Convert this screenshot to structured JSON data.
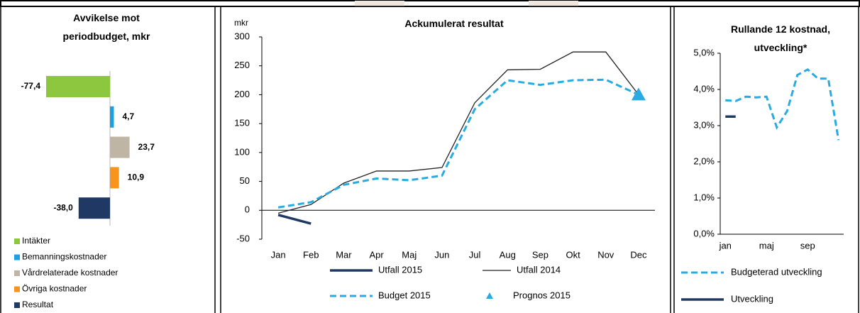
{
  "chart_data": [
    {
      "type": "hbar",
      "title": "Avvikelse mot periodbudget, mkr",
      "categories": [
        "Intäkter",
        "Bemanningskostnader",
        "Vårdrelaterade kostnader",
        "Övriga kostnader",
        "Resultat"
      ],
      "values": [
        -77.4,
        4.7,
        23.7,
        10.9,
        -38.0
      ],
      "value_labels": [
        "-77,4",
        "4,7",
        "23,7",
        "10,9",
        "-38,0"
      ],
      "colors": [
        "#8dc63f",
        "#1ba1e2",
        "#bfb5a5",
        "#f7941d",
        "#1f3864"
      ]
    },
    {
      "type": "line",
      "title": "Ackumulerat resultat",
      "y_label": "mkr",
      "categories": [
        "Jan",
        "Feb",
        "Mar",
        "Apr",
        "Maj",
        "Jun",
        "Jul",
        "Aug",
        "Sep",
        "Okt",
        "Nov",
        "Dec"
      ],
      "ylim": [
        -50,
        300
      ],
      "yticks": [
        -50,
        0,
        50,
        100,
        150,
        200,
        250,
        300
      ],
      "series": [
        {
          "name": "Utfall 2015",
          "color": "#1f3864",
          "style": "thick",
          "values": [
            -8,
            -23,
            null,
            null,
            null,
            null,
            null,
            null,
            null,
            null,
            null,
            null
          ]
        },
        {
          "name": "Utfall 2014",
          "color": "#222222",
          "style": "thin",
          "values": [
            -5,
            10,
            47,
            68,
            68,
            74,
            186,
            243,
            244,
            274,
            274,
            200
          ]
        },
        {
          "name": "Budget 2015",
          "color": "#29abe2",
          "style": "dashed",
          "values": [
            5,
            14,
            44,
            55,
            52,
            60,
            175,
            225,
            217,
            225,
            226,
            200
          ]
        },
        {
          "name": "Prognos 2015",
          "color": "#29abe2",
          "style": "triangle",
          "values": [
            null,
            null,
            null,
            null,
            null,
            null,
            null,
            null,
            null,
            null,
            null,
            200
          ]
        }
      ]
    },
    {
      "type": "line",
      "title": "Rullande 12 kostnad, utveckling*",
      "categories": [
        "jan",
        null,
        null,
        null,
        "maj",
        null,
        null,
        null,
        "sep",
        null,
        null,
        null
      ],
      "ylim": [
        0,
        5
      ],
      "yticks": [
        {
          "value": 0,
          "label": "0,0%"
        },
        {
          "value": 1,
          "label": "1,0%"
        },
        {
          "value": 2,
          "label": "2,0%"
        },
        {
          "value": 3,
          "label": "3,0%"
        },
        {
          "value": 4,
          "label": "4,0%"
        },
        {
          "value": 5,
          "label": "5,0%"
        }
      ],
      "series": [
        {
          "name": "Budgeterad utveckling",
          "color": "#29abe2",
          "style": "dashed",
          "values": [
            3.7,
            3.68,
            3.8,
            3.78,
            3.8,
            2.95,
            3.4,
            4.4,
            4.55,
            4.3,
            4.3,
            2.6
          ]
        },
        {
          "name": "Utveckling",
          "color": "#1f3864",
          "style": "thick",
          "values": [
            3.25,
            3.25,
            null,
            null,
            null,
            null,
            null,
            null,
            null,
            null,
            null,
            null
          ]
        }
      ]
    }
  ]
}
